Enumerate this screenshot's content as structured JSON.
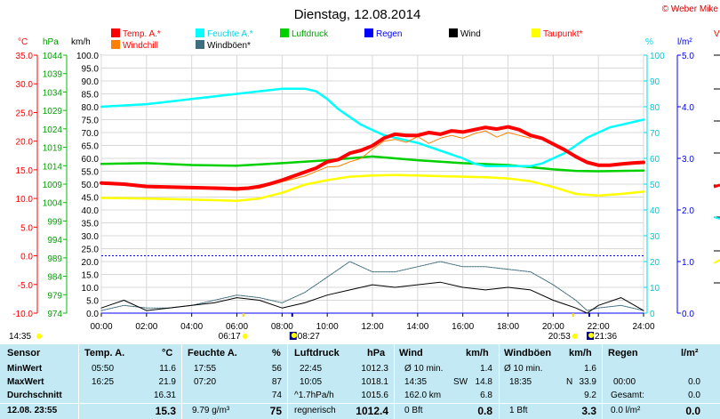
{
  "title": "Dienstag, 12.08.2014",
  "copyright": "© Weber Mike",
  "colors": {
    "temp": "#ff0000",
    "windchill": "#ff7f00",
    "humidity": "#00ffff",
    "gusts": "#406e7e",
    "pressure": "#00d000",
    "rain": "#0000ff",
    "wind": "#000000",
    "dewpoint": "#ffff00",
    "table_bg": "#c3eaf4"
  },
  "axes": {
    "celsius_label": "°C",
    "hpa_label": "hPa",
    "kmh_label": "km/h",
    "percent_label": "%",
    "rain_label": "l/m²",
    "celsius_ticks": [
      "35.0",
      "30.0",
      "25.0",
      "20.0",
      "15.0",
      "10.0",
      "5.0",
      "0.0",
      "-5.0",
      "-10.0"
    ],
    "hpa_ticks": [
      "1044",
      "1039",
      "1034",
      "1029",
      "1024",
      "1019",
      "1014",
      "1009",
      "1004",
      "999",
      "994",
      "989",
      "984",
      "979",
      "974"
    ],
    "kmh_ticks": [
      "100.0",
      "95.0",
      "90.0",
      "85.0",
      "80.0",
      "75.0",
      "70.0",
      "65.0",
      "60.0",
      "55.0",
      "50.0",
      "45.0",
      "40.0",
      "35.0",
      "30.0",
      "25.0",
      "20.0",
      "15.0",
      "10.0",
      "5.0",
      "0.0"
    ],
    "percent_ticks": [
      "100",
      "90",
      "80",
      "70",
      "60",
      "50",
      "40",
      "30",
      "20",
      "10",
      "0"
    ],
    "rain_ticks": [
      "5.0",
      "4.0",
      "3.0",
      "2.0",
      "1.0",
      "0.0"
    ],
    "time_ticks": [
      "00:00",
      "02:00",
      "04:00",
      "06:00",
      "08:00",
      "10:00",
      "12:00",
      "14:00",
      "16:00",
      "18:00",
      "20:00",
      "22:00",
      "24:00"
    ]
  },
  "events": {
    "min_time_label": "14:35",
    "sunrise": "06:17",
    "moonrise": "08:27",
    "sunset": "20:53",
    "moonset": "21:36"
  },
  "chart_data": {
    "type": "line",
    "title": "Dienstag, 12.08.2014",
    "x_unit": "hours",
    "xlim": [
      0,
      24
    ],
    "series": [
      {
        "name": "Temp. A.*",
        "unit": "°C",
        "color": "#ff0000",
        "x": [
          0,
          1,
          2,
          3,
          4,
          5,
          6,
          6.5,
          7,
          7.5,
          8,
          8.5,
          9,
          9.5,
          10,
          10.5,
          11,
          11.5,
          12,
          12.5,
          13,
          13.5,
          14,
          14.5,
          15,
          15.5,
          16,
          16.5,
          17,
          17.5,
          18,
          18.5,
          19,
          19.5,
          20,
          20.5,
          21,
          21.5,
          22,
          22.5,
          23,
          23.5,
          24
        ],
        "y": [
          12.7,
          12.5,
          12.1,
          12.0,
          11.9,
          11.8,
          11.7,
          11.8,
          12.1,
          12.6,
          13.2,
          13.9,
          14.6,
          15.3,
          16.4,
          16.8,
          17.9,
          18.4,
          19.2,
          20.5,
          21.2,
          21.0,
          21.0,
          21.5,
          21.2,
          21.8,
          21.6,
          22.0,
          22.4,
          22.1,
          22.5,
          22.0,
          21.0,
          20.5,
          19.5,
          18.5,
          17.3,
          16.3,
          15.8,
          15.8,
          16.0,
          16.2,
          16.3
        ]
      },
      {
        "name": "Windchill",
        "unit": "°C",
        "color": "#ff7f00",
        "x": [
          5.5,
          6,
          7,
          8,
          9,
          10,
          10.5,
          11,
          11.5,
          12,
          12.5,
          13,
          13.5,
          14,
          14.5,
          15,
          15.5,
          16,
          16.5,
          17,
          17.5,
          18,
          18.5,
          19
        ],
        "y": [
          11.5,
          11.4,
          11.8,
          12.9,
          13.9,
          15.5,
          15.6,
          16.4,
          17.0,
          18.6,
          20.0,
          20.3,
          19.8,
          20.8,
          19.6,
          20.5,
          21.0,
          20.5,
          21.3,
          21.8,
          20.7,
          21.5,
          21.0,
          20.5
        ]
      },
      {
        "name": "Feuchte A.*",
        "unit": "%",
        "color": "#00ffff",
        "x": [
          0,
          1,
          2,
          3,
          4,
          5,
          6,
          7,
          8,
          9,
          9.5,
          10,
          10.5,
          11,
          11.5,
          12,
          12.5,
          13,
          14,
          15,
          16,
          16.5,
          17,
          17.5,
          18,
          19,
          19.5,
          20,
          20.5,
          21,
          21.5,
          22,
          22.5,
          23,
          24
        ],
        "y": [
          80,
          80.5,
          81,
          82,
          83,
          84,
          85,
          86,
          87,
          87,
          86,
          83,
          79,
          76,
          73,
          71,
          69,
          68,
          66,
          63,
          60,
          58,
          57,
          57,
          57,
          57,
          58,
          60,
          62,
          65,
          68,
          70,
          72,
          73,
          75
        ]
      },
      {
        "name": "Windböen*",
        "unit": "km/h",
        "color": "#406e7e",
        "x": [
          0,
          1,
          2,
          3,
          4,
          5,
          6,
          7,
          8,
          9,
          10,
          11,
          12,
          13,
          14,
          15,
          16,
          17,
          18,
          19,
          20,
          21,
          21.5,
          22,
          23,
          24
        ],
        "y": [
          1,
          3,
          2,
          2,
          3,
          5,
          7,
          6,
          4,
          8,
          14,
          20,
          16,
          16,
          18,
          20,
          18,
          18,
          17,
          16,
          11,
          5,
          1,
          2,
          3,
          1
        ]
      },
      {
        "name": "Luftdruck",
        "unit": "hPa",
        "color": "#00d000",
        "x": [
          0,
          2,
          4,
          6,
          8,
          10,
          12,
          14,
          16,
          18,
          19,
          20,
          21,
          22,
          23,
          24
        ],
        "y": [
          1014.5,
          1014.7,
          1014.2,
          1014.0,
          1014.7,
          1015.5,
          1016.5,
          1015.5,
          1014.7,
          1014.2,
          1013.6,
          1013.0,
          1012.6,
          1012.5,
          1012.6,
          1012.7
        ]
      },
      {
        "name": "Regen",
        "unit": "l/m²",
        "color": "#0000ff",
        "x": [
          0,
          24
        ],
        "y": [
          0,
          0
        ]
      },
      {
        "name": "Wind",
        "unit": "km/h",
        "color": "#000000",
        "x": [
          0,
          1,
          2,
          3,
          4,
          5,
          6,
          7,
          8,
          9,
          10,
          11,
          12,
          13,
          14,
          15,
          16,
          17,
          18,
          19,
          20,
          21,
          21.5,
          22,
          23,
          24
        ],
        "y": [
          2,
          5,
          1,
          2,
          3,
          4,
          6,
          5,
          2,
          4,
          7,
          9,
          11,
          10,
          11,
          12,
          10,
          9,
          10,
          9,
          5,
          2,
          0,
          3,
          6,
          1
        ]
      },
      {
        "name": "Taupunkt*",
        "unit": "°C",
        "color": "#ffff00",
        "x": [
          0,
          2,
          4,
          6,
          7,
          8,
          9,
          10,
          11,
          12,
          13,
          14,
          15,
          16,
          17,
          18,
          19,
          20,
          21,
          22,
          23,
          24
        ],
        "y": [
          10.1,
          10.0,
          9.8,
          9.6,
          10.0,
          11.0,
          12.4,
          13.2,
          13.8,
          14.0,
          14.1,
          14.0,
          13.9,
          13.8,
          13.7,
          13.5,
          13.0,
          12.0,
          10.8,
          10.5,
          10.8,
          11.2
        ]
      }
    ]
  },
  "table": {
    "col_sensor": {
      "header": "Sensor",
      "rows": [
        "MinWert",
        "MaxWert",
        "Durchschnitt",
        "12.08. 23:55"
      ]
    },
    "col_temp": {
      "header": "Temp. A.",
      "unit": "°C",
      "times": [
        "05:50",
        "16:25",
        "",
        ""
      ],
      "values": [
        "11.6",
        "21.9",
        "16.31",
        "15.3"
      ]
    },
    "col_hum": {
      "header": "Feuchte A.",
      "unit": "%",
      "times": [
        "17:55",
        "07:20",
        "",
        "9.79 g/m³"
      ],
      "values": [
        "56",
        "87",
        "74",
        "75"
      ]
    },
    "col_press": {
      "header": "Luftdruck",
      "unit": "hPa",
      "times": [
        "22:45",
        "10:05",
        "^1.7hPa/h",
        "regnerisch"
      ],
      "values": [
        "1012.3",
        "1018.1",
        "1015.6",
        "1012.4"
      ]
    },
    "col_wind": {
      "header": "Wind",
      "unit": "km/h",
      "times": [
        "Ø 10 min.",
        "14:35",
        "162.0 km",
        "0 Bft"
      ],
      "mids": [
        "",
        "SW",
        "",
        ""
      ],
      "values": [
        "1.4",
        "14.8",
        "6.8",
        "0.8"
      ]
    },
    "col_gust": {
      "header": "Windböen",
      "unit": "km/h",
      "times": [
        "Ø 10 min.",
        "18:35",
        "",
        "1 Bft"
      ],
      "mids": [
        "",
        "N",
        "",
        ""
      ],
      "values": [
        "1.6",
        "33.9",
        "9.2",
        "3.3"
      ]
    },
    "col_rain": {
      "header": "Regen",
      "unit": "l/m²",
      "times": [
        "",
        "00:00",
        "Gesamt:",
        "0.0 l/m²"
      ],
      "values": [
        "",
        "0.0",
        "0.0",
        "0.0"
      ]
    }
  }
}
